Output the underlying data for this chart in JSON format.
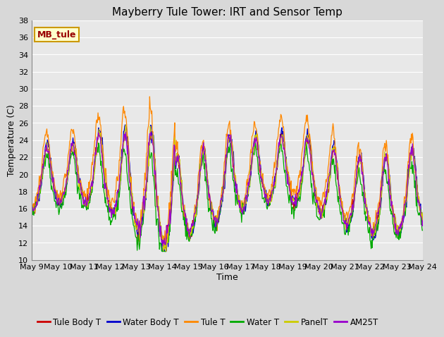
{
  "title": "Mayberry Tule Tower: IRT and Sensor Temp",
  "xlabel": "Time",
  "ylabel": "Temperature (C)",
  "ylim": [
    10,
    38
  ],
  "yticks": [
    10,
    12,
    14,
    16,
    18,
    20,
    22,
    24,
    26,
    28,
    30,
    32,
    34,
    36,
    38
  ],
  "xtick_labels": [
    "May 9",
    "May 10",
    "May 11",
    "May 12",
    "May 13",
    "May 14",
    "May 15",
    "May 16",
    "May 17",
    "May 18",
    "May 19",
    "May 20",
    "May 21",
    "May 22",
    "May 23",
    "May 24"
  ],
  "series_colors": [
    "#cc0000",
    "#0000cc",
    "#ff8800",
    "#00aa00",
    "#cccc00",
    "#9900cc"
  ],
  "series_labels": [
    "Tule Body T",
    "Water Body T",
    "Tule T",
    "Water T",
    "PanelT",
    "AM25T"
  ],
  "annotation_text": "MB_tule",
  "annotation_color": "#990000",
  "annotation_bg": "#ffffcc",
  "annotation_border": "#cc9900",
  "plot_bg": "#e8e8e8",
  "grid_color": "#ffffff",
  "title_fontsize": 11,
  "axis_fontsize": 9,
  "tick_fontsize": 8,
  "legend_fontsize": 8.5,
  "n_days": 15
}
